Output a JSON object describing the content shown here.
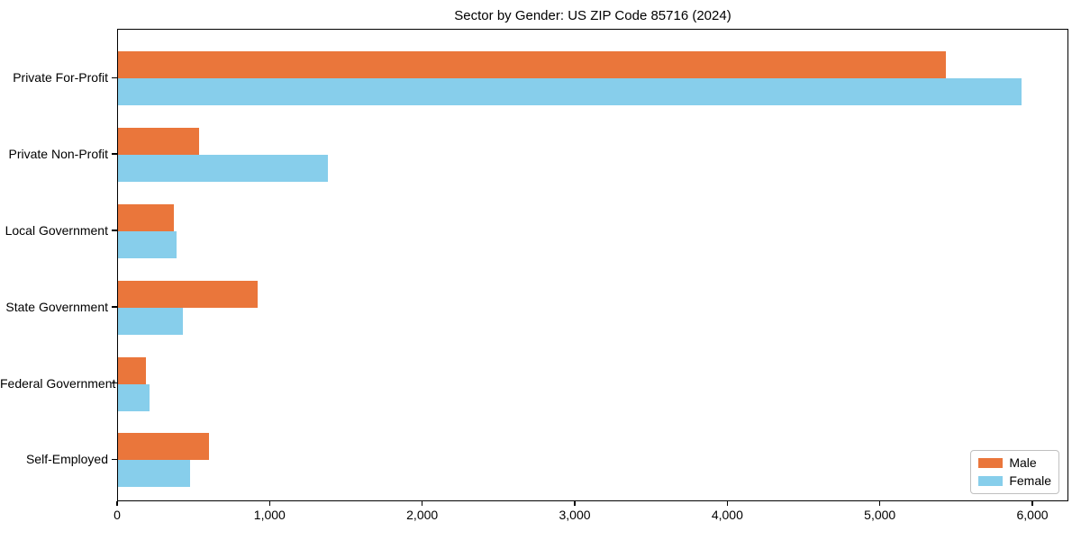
{
  "chart_data": {
    "type": "bar",
    "orientation": "horizontal",
    "title": "Sector by Gender: US ZIP Code 85716 (2024)",
    "categories": [
      "Private For-Profit",
      "Private Non-Profit",
      "Local Government",
      "State Government",
      "Federal Government",
      "Self-Employed"
    ],
    "series": [
      {
        "name": "Male",
        "color": "#ea763b",
        "values": [
          5440,
          535,
          365,
          920,
          185,
          600
        ]
      },
      {
        "name": "Female",
        "color": "#87ceeb",
        "values": [
          5935,
          1380,
          385,
          425,
          205,
          475
        ]
      }
    ],
    "xlabel": "",
    "ylabel": "",
    "xlim": [
      0,
      6236
    ],
    "x_ticks": [
      0,
      1000,
      2000,
      3000,
      4000,
      5000,
      6000
    ],
    "x_tick_labels": [
      "0",
      "1,000",
      "2,000",
      "3,000",
      "4,000",
      "5,000",
      "6,000"
    ],
    "grid": false,
    "legend_position": "lower right",
    "plot_background": "#ffffff",
    "spine_color": "#000000"
  },
  "legend": {
    "items": [
      {
        "label": "Male"
      },
      {
        "label": "Female"
      }
    ]
  }
}
